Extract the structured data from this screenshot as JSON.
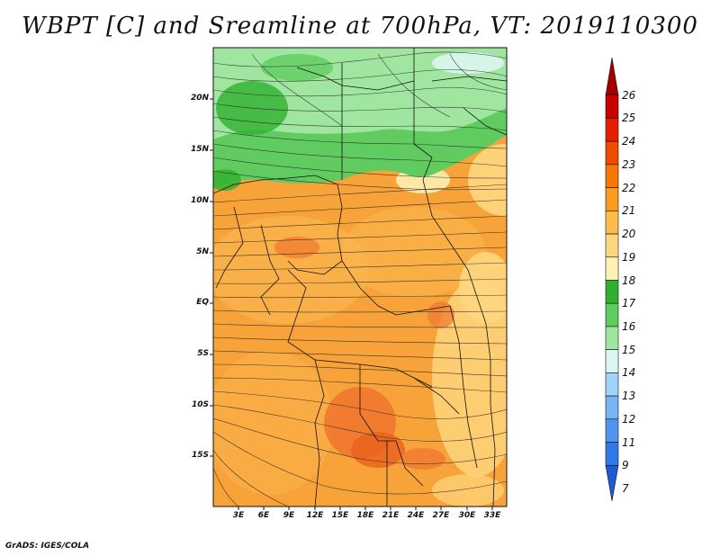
{
  "title": "WBPT [C] and Sreamline at 700hPa, VT: 2019110300",
  "credit": "GrADS: IGES/COLA",
  "map": {
    "lat_labels": [
      "20N",
      "15N",
      "10N",
      "5N",
      "EQ",
      "5S",
      "10S",
      "15S"
    ],
    "lon_labels": [
      "3E",
      "6E",
      "9E",
      "12E",
      "15E",
      "18E",
      "21E",
      "24E",
      "27E",
      "30E",
      "33E"
    ]
  },
  "colorbar": {
    "labels": [
      "26",
      "25",
      "24",
      "23",
      "22",
      "21",
      "20",
      "19",
      "18",
      "17",
      "16",
      "15",
      "14",
      "13",
      "12",
      "11",
      "9",
      "7"
    ],
    "colors": [
      "#a50000",
      "#c80000",
      "#e61e00",
      "#f04b00",
      "#f77800",
      "#fb9b1e",
      "#fdbb4a",
      "#fdd77f",
      "#fff0b4",
      "#30b030",
      "#60cc60",
      "#a0e6a0",
      "#dcf5f0",
      "#a0d2fa",
      "#78b4f5",
      "#5096f0",
      "#3278e6",
      "#1e5ad2"
    ]
  }
}
